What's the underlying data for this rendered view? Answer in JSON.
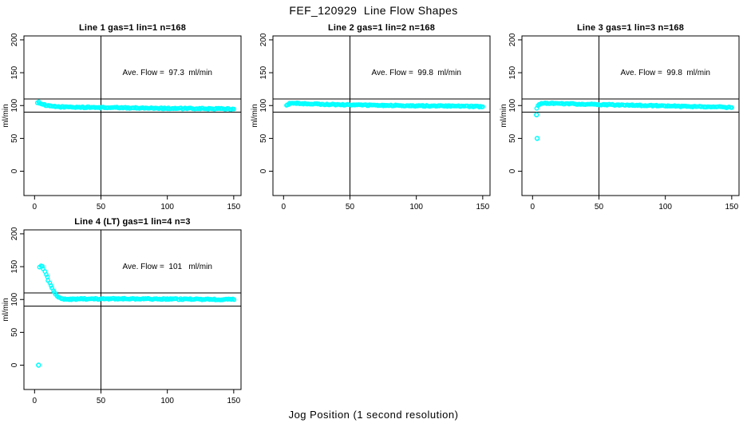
{
  "figure": {
    "title": "FEF_120929  Line Flow Shapes",
    "xlabel": "Jog Position (1 second resolution)",
    "ylabel": "ml/min",
    "background_color": "#FFFFFF",
    "point_color": "#00FFFF",
    "line_color": "#000000"
  },
  "chart_data": [
    {
      "type": "scatter",
      "title": "Line 1 gas=1 lin=1 n=168",
      "annotation": "Ave. Flow =  97.3  ml/min",
      "ave_flow_ml_min": 97.3,
      "n": 168,
      "ylabel": "ml/min",
      "xticks": [
        0,
        50,
        100,
        150
      ],
      "yticks": [
        0,
        50,
        100,
        150,
        200
      ],
      "xlim": [
        -8,
        155.5
      ],
      "ylim": [
        -37,
        206
      ],
      "hlines": [
        90,
        110
      ],
      "vlines": [
        50
      ],
      "annotation_xy": [
        100,
        150
      ],
      "grid": false,
      "series_keypoints": [
        [
          2,
          105
        ],
        [
          3,
          105
        ],
        [
          4,
          104
        ],
        [
          6,
          102
        ],
        [
          8,
          100.5
        ],
        [
          10,
          99.5
        ],
        [
          15,
          98.5
        ],
        [
          20,
          98
        ],
        [
          30,
          97.5
        ],
        [
          50,
          97
        ],
        [
          80,
          96.3
        ],
        [
          110,
          95.5
        ],
        [
          130,
          95.2
        ],
        [
          150,
          94.8
        ]
      ],
      "outliers": []
    },
    {
      "type": "scatter",
      "title": "Line 2 gas=1 lin=2 n=168",
      "annotation": "Ave. Flow =  99.8  ml/min",
      "ave_flow_ml_min": 99.8,
      "n": 168,
      "ylabel": "ml/min",
      "xticks": [
        0,
        50,
        100,
        150
      ],
      "yticks": [
        0,
        50,
        100,
        150,
        200
      ],
      "xlim": [
        -8,
        155.5
      ],
      "ylim": [
        -37,
        206
      ],
      "hlines": [
        90,
        110
      ],
      "vlines": [
        50
      ],
      "annotation_xy": [
        100,
        150
      ],
      "grid": false,
      "series_keypoints": [
        [
          2,
          99.5
        ],
        [
          3,
          101
        ],
        [
          4,
          102.5
        ],
        [
          5,
          103
        ],
        [
          6,
          103.4
        ],
        [
          8,
          103.5
        ],
        [
          10,
          103.3
        ],
        [
          15,
          102.9
        ],
        [
          20,
          102.5
        ],
        [
          30,
          101.9
        ],
        [
          40,
          101.4
        ],
        [
          50,
          101
        ],
        [
          70,
          100.4
        ],
        [
          90,
          100
        ],
        [
          110,
          99.5
        ],
        [
          130,
          99
        ],
        [
          150,
          98.5
        ]
      ],
      "outliers": []
    },
    {
      "type": "scatter",
      "title": "Line 3 gas=1 lin=3 n=168",
      "annotation": "Ave. Flow =  99.8  ml/min",
      "ave_flow_ml_min": 99.8,
      "n": 168,
      "ylabel": "ml/min",
      "xticks": [
        0,
        50,
        100,
        150
      ],
      "yticks": [
        0,
        50,
        100,
        150,
        200
      ],
      "xlim": [
        -8,
        155.5
      ],
      "ylim": [
        -37,
        206
      ],
      "hlines": [
        90,
        110
      ],
      "vlines": [
        50
      ],
      "annotation_xy": [
        100,
        150
      ],
      "grid": false,
      "series_keypoints": [
        [
          3,
          96
        ],
        [
          4,
          99.5
        ],
        [
          5,
          101.5
        ],
        [
          6,
          102.3
        ],
        [
          8,
          103
        ],
        [
          10,
          103.3
        ],
        [
          15,
          103.4
        ],
        [
          20,
          103.2
        ],
        [
          30,
          102.6
        ],
        [
          40,
          102.1
        ],
        [
          50,
          101.6
        ],
        [
          60,
          101.1
        ],
        [
          70,
          100.6
        ],
        [
          80,
          100.2
        ],
        [
          90,
          99.8
        ],
        [
          100,
          99.4
        ],
        [
          110,
          99
        ],
        [
          120,
          98.5
        ],
        [
          130,
          98.1
        ],
        [
          140,
          97.7
        ],
        [
          150,
          97.3
        ]
      ],
      "outliers": [
        [
          3,
          86
        ],
        [
          3.5,
          50
        ]
      ]
    },
    {
      "type": "scatter",
      "title": "Line 4 (LT) gas=1 lin=4 n=3",
      "annotation": "Ave. Flow =  101   ml/min",
      "ave_flow_ml_min": 101,
      "n": 3,
      "ylabel": "ml/min",
      "xticks": [
        0,
        50,
        100,
        150
      ],
      "yticks": [
        0,
        50,
        100,
        150,
        200
      ],
      "xlim": [
        -8,
        155.5
      ],
      "ylim": [
        -37,
        206
      ],
      "hlines": [
        90,
        110
      ],
      "vlines": [
        50
      ],
      "annotation_xy": [
        100,
        150
      ],
      "grid": false,
      "series_keypoints": [
        [
          4,
          150
        ],
        [
          5,
          152
        ],
        [
          6,
          150.5
        ],
        [
          7,
          146
        ],
        [
          8,
          141
        ],
        [
          9,
          136
        ],
        [
          10,
          131
        ],
        [
          11,
          126
        ],
        [
          12,
          121.5
        ],
        [
          13,
          117.5
        ],
        [
          14,
          113.5
        ],
        [
          15,
          110.5
        ],
        [
          16,
          107.5
        ],
        [
          17,
          105.5
        ],
        [
          18,
          103.5
        ],
        [
          19,
          102.5
        ],
        [
          20,
          101.5
        ],
        [
          22,
          100.8
        ],
        [
          25,
          100.3
        ],
        [
          30,
          100.5
        ],
        [
          40,
          101
        ],
        [
          50,
          101
        ],
        [
          70,
          101
        ],
        [
          90,
          100.8
        ],
        [
          110,
          100.6
        ],
        [
          130,
          100.3
        ],
        [
          150,
          100
        ]
      ],
      "outliers": [
        [
          3,
          0
        ]
      ]
    }
  ]
}
